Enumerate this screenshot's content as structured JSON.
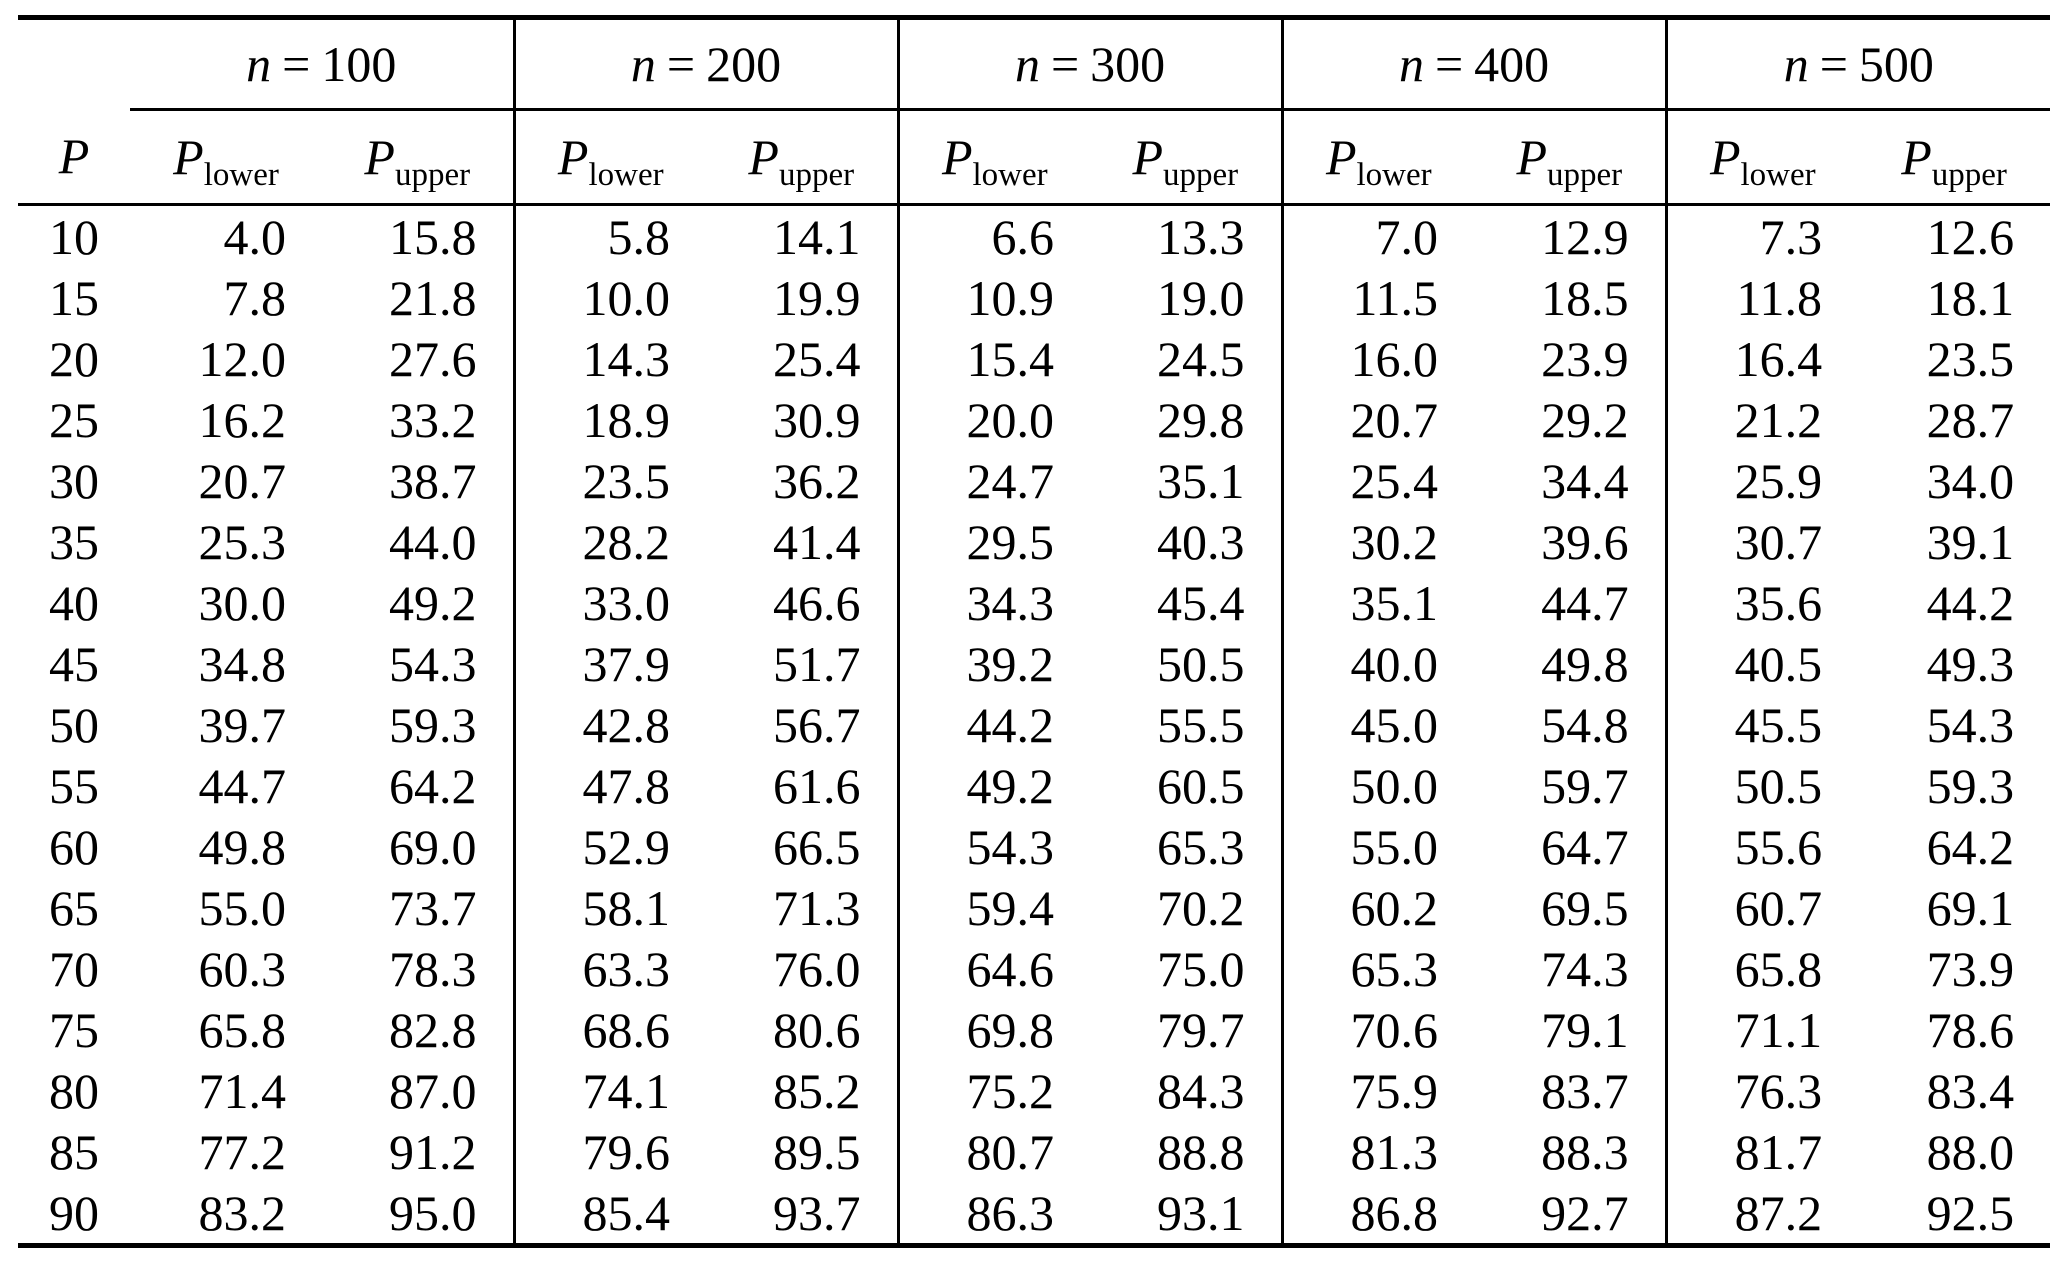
{
  "table": {
    "p_header": "P",
    "groups": [
      {
        "variable": "n",
        "equals": "=",
        "value": "100"
      },
      {
        "variable": "n",
        "equals": "=",
        "value": "200"
      },
      {
        "variable": "n",
        "equals": "=",
        "value": "300"
      },
      {
        "variable": "n",
        "equals": "=",
        "value": "400"
      },
      {
        "variable": "n",
        "equals": "=",
        "value": "500"
      }
    ],
    "subcolumns": {
      "base": "P",
      "lower_subscript": "lower",
      "upper_subscript": "upper"
    },
    "rows": [
      {
        "p": "10",
        "values": [
          "4.0",
          "15.8",
          "5.8",
          "14.1",
          "6.6",
          "13.3",
          "7.0",
          "12.9",
          "7.3",
          "12.6"
        ]
      },
      {
        "p": "15",
        "values": [
          "7.8",
          "21.8",
          "10.0",
          "19.9",
          "10.9",
          "19.0",
          "11.5",
          "18.5",
          "11.8",
          "18.1"
        ]
      },
      {
        "p": "20",
        "values": [
          "12.0",
          "27.6",
          "14.3",
          "25.4",
          "15.4",
          "24.5",
          "16.0",
          "23.9",
          "16.4",
          "23.5"
        ]
      },
      {
        "p": "25",
        "values": [
          "16.2",
          "33.2",
          "18.9",
          "30.9",
          "20.0",
          "29.8",
          "20.7",
          "29.2",
          "21.2",
          "28.7"
        ]
      },
      {
        "p": "30",
        "values": [
          "20.7",
          "38.7",
          "23.5",
          "36.2",
          "24.7",
          "35.1",
          "25.4",
          "34.4",
          "25.9",
          "34.0"
        ]
      },
      {
        "p": "35",
        "values": [
          "25.3",
          "44.0",
          "28.2",
          "41.4",
          "29.5",
          "40.3",
          "30.2",
          "39.6",
          "30.7",
          "39.1"
        ]
      },
      {
        "p": "40",
        "values": [
          "30.0",
          "49.2",
          "33.0",
          "46.6",
          "34.3",
          "45.4",
          "35.1",
          "44.7",
          "35.6",
          "44.2"
        ]
      },
      {
        "p": "45",
        "values": [
          "34.8",
          "54.3",
          "37.9",
          "51.7",
          "39.2",
          "50.5",
          "40.0",
          "49.8",
          "40.5",
          "49.3"
        ]
      },
      {
        "p": "50",
        "values": [
          "39.7",
          "59.3",
          "42.8",
          "56.7",
          "44.2",
          "55.5",
          "45.0",
          "54.8",
          "45.5",
          "54.3"
        ]
      },
      {
        "p": "55",
        "values": [
          "44.7",
          "64.2",
          "47.8",
          "61.6",
          "49.2",
          "60.5",
          "50.0",
          "59.7",
          "50.5",
          "59.3"
        ]
      },
      {
        "p": "60",
        "values": [
          "49.8",
          "69.0",
          "52.9",
          "66.5",
          "54.3",
          "65.3",
          "55.0",
          "64.7",
          "55.6",
          "64.2"
        ]
      },
      {
        "p": "65",
        "values": [
          "55.0",
          "73.7",
          "58.1",
          "71.3",
          "59.4",
          "70.2",
          "60.2",
          "69.5",
          "60.7",
          "69.1"
        ]
      },
      {
        "p": "70",
        "values": [
          "60.3",
          "78.3",
          "63.3",
          "76.0",
          "64.6",
          "75.0",
          "65.3",
          "74.3",
          "65.8",
          "73.9"
        ]
      },
      {
        "p": "75",
        "values": [
          "65.8",
          "82.8",
          "68.6",
          "80.6",
          "69.8",
          "79.7",
          "70.6",
          "79.1",
          "71.1",
          "78.6"
        ]
      },
      {
        "p": "80",
        "values": [
          "71.4",
          "87.0",
          "74.1",
          "85.2",
          "75.2",
          "84.3",
          "75.9",
          "83.7",
          "76.3",
          "83.4"
        ]
      },
      {
        "p": "85",
        "values": [
          "77.2",
          "91.2",
          "79.6",
          "89.5",
          "80.7",
          "88.8",
          "81.3",
          "88.3",
          "81.7",
          "88.0"
        ]
      },
      {
        "p": "90",
        "values": [
          "83.2",
          "95.0",
          "85.4",
          "93.7",
          "86.3",
          "93.1",
          "86.8",
          "92.7",
          "87.2",
          "92.5"
        ]
      }
    ]
  }
}
